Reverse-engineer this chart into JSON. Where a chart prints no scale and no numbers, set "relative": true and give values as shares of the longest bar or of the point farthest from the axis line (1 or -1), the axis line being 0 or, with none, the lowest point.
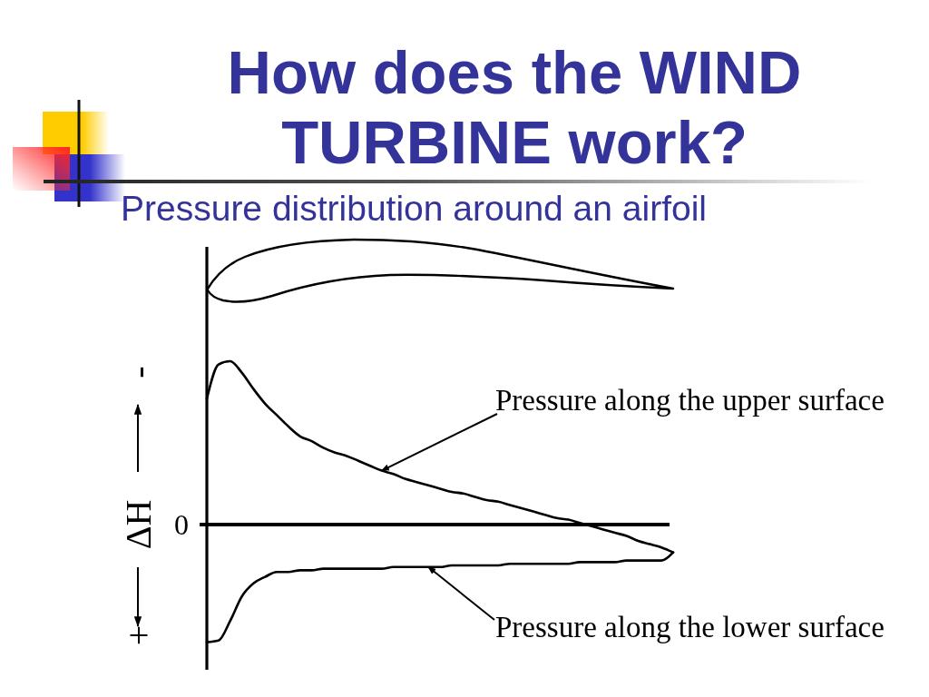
{
  "chart_data": {
    "type": "line",
    "title": "How does the WIND TURBINE work?",
    "subtitle": "Pressure distribution around an airfoil",
    "ylabel": "ΔH",
    "annotations": [
      "-",
      "+"
    ],
    "relative": true,
    "categories": [
      null,
      null,
      null,
      null,
      null,
      null,
      null,
      null,
      null,
      null,
      null,
      null,
      null,
      null,
      null,
      null,
      null,
      null,
      null,
      null,
      null,
      null,
      null,
      null,
      null,
      null,
      null,
      null,
      null,
      null,
      null,
      null,
      null,
      null,
      null,
      null,
      null,
      null,
      null,
      null,
      null
    ],
    "series": [
      {
        "name": "Pressure along the upper surface",
        "color": "#000000",
        "values": [
          0.77,
          0.98,
          1,
          0.93,
          0.83,
          0.74,
          0.67,
          0.6,
          0.54,
          0.51,
          0.47,
          0.44,
          0.42,
          0.39,
          0.36,
          0.33,
          0.31,
          0.28,
          0.26,
          0.24,
          0.22,
          0.2,
          0.19,
          0.17,
          0.15,
          0.14,
          0.12,
          0.1,
          0.08,
          0.06,
          0.04,
          0.03,
          0.01,
          -0.01,
          -0.03,
          -0.05,
          -0.07,
          -0.1,
          -0.12,
          -0.14,
          -0.17
        ]
      },
      {
        "name": "Pressure along the lower surface",
        "color": "#000000",
        "values": [
          -0.72,
          -0.71,
          -0.59,
          -0.44,
          -0.36,
          -0.32,
          -0.29,
          -0.29,
          -0.28,
          -0.28,
          -0.27,
          -0.27,
          -0.27,
          -0.27,
          -0.27,
          -0.27,
          -0.26,
          -0.26,
          -0.26,
          -0.26,
          -0.26,
          -0.25,
          -0.25,
          -0.25,
          -0.25,
          -0.25,
          -0.24,
          -0.24,
          -0.24,
          -0.24,
          -0.24,
          -0.24,
          -0.23,
          -0.23,
          -0.23,
          -0.23,
          -0.22,
          -0.22,
          -0.22,
          -0.22,
          -0.17
        ]
      }
    ],
    "ref_lines": [
      {
        "axis": "y",
        "value": 0,
        "label": "0"
      }
    ],
    "line_style": "solid"
  }
}
